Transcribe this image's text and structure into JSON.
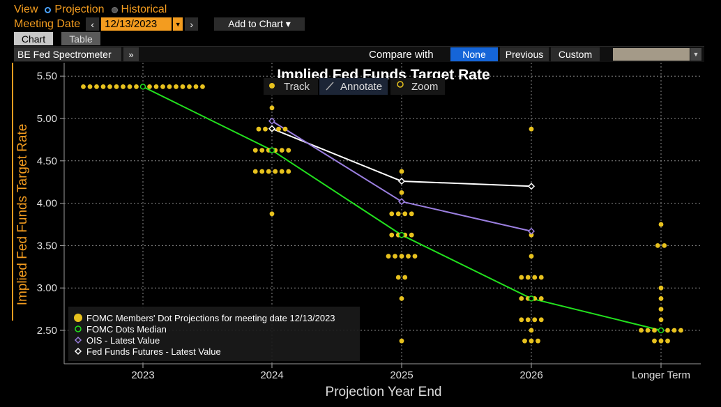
{
  "header": {
    "view_label": "View",
    "projection_label": "Projection",
    "historical_label": "Historical",
    "meeting_date_label": "Meeting Date",
    "meeting_date": "12/13/2023",
    "prev_arrow": "‹",
    "next_arrow": "›",
    "add_to_chart": "Add to Chart ▾"
  },
  "tabs": {
    "chart": "Chart",
    "table": "Table"
  },
  "toolbar": {
    "spectrometer": "BE Fed Spectrometer",
    "expand": "»",
    "compare_with": "Compare with",
    "options": {
      "none": "None",
      "previous": "Previous",
      "custom": "Custom"
    }
  },
  "chart_tools": {
    "track": "Track",
    "annotate": "Annotate",
    "zoom": "Zoom"
  },
  "colors": {
    "accent": "#f39c1f",
    "dots": "#e8c21e",
    "median": "#22e01e",
    "ois": "#9b7fe0",
    "futures": "#ffffff",
    "selected": "#1565d8"
  },
  "chart_data": {
    "type": "scatter",
    "title": "Implied Fed Funds Target Rate",
    "xlabel": "Projection Year End",
    "ylabel": "Implied Fed Funds Target Rate",
    "categories": [
      "2023",
      "2024",
      "2025",
      "2026",
      "Longer Term"
    ],
    "ylim": [
      2.2,
      5.65
    ],
    "yticks": [
      "5.50",
      "5.00",
      "4.50",
      "4.00",
      "3.50",
      "3.00",
      "2.50"
    ],
    "grid": true,
    "legend_position": "bottom-left",
    "dots": [
      {
        "x": 0,
        "y": 5.375,
        "count": 19
      },
      {
        "x": 1,
        "y": 5.125,
        "count": 1
      },
      {
        "x": 1,
        "y": 4.875,
        "count": 5
      },
      {
        "x": 1,
        "y": 4.625,
        "count": 6
      },
      {
        "x": 1,
        "y": 4.375,
        "count": 6
      },
      {
        "x": 1,
        "y": 3.875,
        "count": 1
      },
      {
        "x": 2,
        "y": 4.375,
        "count": 1
      },
      {
        "x": 2,
        "y": 4.125,
        "count": 1
      },
      {
        "x": 2,
        "y": 3.875,
        "count": 4
      },
      {
        "x": 2,
        "y": 3.625,
        "count": 4
      },
      {
        "x": 2,
        "y": 3.375,
        "count": 5
      },
      {
        "x": 2,
        "y": 3.125,
        "count": 2
      },
      {
        "x": 2,
        "y": 2.875,
        "count": 1
      },
      {
        "x": 2,
        "y": 2.375,
        "count": 1
      },
      {
        "x": 3,
        "y": 4.875,
        "count": 1
      },
      {
        "x": 3,
        "y": 3.625,
        "count": 1
      },
      {
        "x": 3,
        "y": 3.375,
        "count": 1
      },
      {
        "x": 3,
        "y": 3.125,
        "count": 4
      },
      {
        "x": 3,
        "y": 2.875,
        "count": 4
      },
      {
        "x": 3,
        "y": 2.625,
        "count": 4
      },
      {
        "x": 3,
        "y": 2.5,
        "count": 1
      },
      {
        "x": 3,
        "y": 2.375,
        "count": 3
      },
      {
        "x": 4,
        "y": 3.75,
        "count": 1
      },
      {
        "x": 4,
        "y": 3.5,
        "count": 2
      },
      {
        "x": 4,
        "y": 3.0,
        "count": 1
      },
      {
        "x": 4,
        "y": 2.875,
        "count": 1
      },
      {
        "x": 4,
        "y": 2.75,
        "count": 1
      },
      {
        "x": 4,
        "y": 2.625,
        "count": 1
      },
      {
        "x": 4,
        "y": 2.5,
        "count": 7
      },
      {
        "x": 4,
        "y": 2.375,
        "count": 3
      }
    ],
    "series": [
      {
        "name": "FOMC Members' Dot Projections for meeting date 12/13/2023",
        "kind": "dots"
      },
      {
        "name": "FOMC Dots Median",
        "kind": "line",
        "x": [
          0,
          1,
          2,
          3,
          4
        ],
        "values": [
          5.375,
          4.625,
          3.625,
          2.875,
          2.5
        ]
      },
      {
        "name": "OIS - Latest Value",
        "kind": "line",
        "x": [
          1,
          2,
          3
        ],
        "values": [
          4.97,
          4.02,
          3.67
        ]
      },
      {
        "name": "Fed Funds Futures - Latest Value",
        "kind": "line",
        "x": [
          1,
          2,
          3
        ],
        "values": [
          4.88,
          4.26,
          4.2
        ]
      }
    ]
  }
}
